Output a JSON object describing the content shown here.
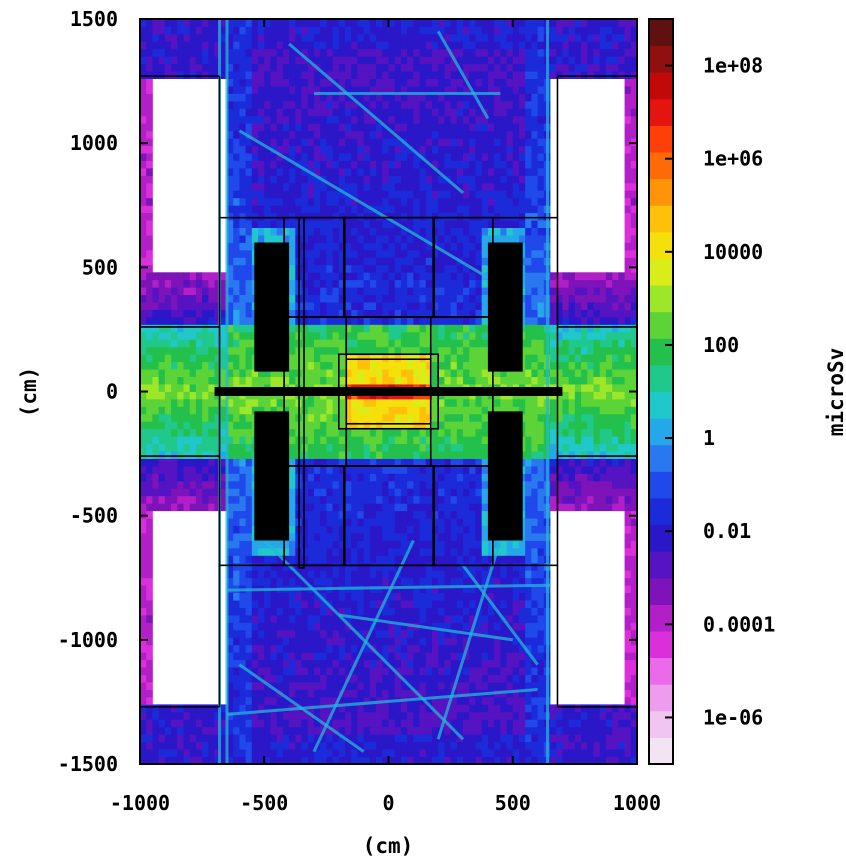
{
  "chart_data": {
    "type": "heatmap",
    "title": "",
    "xlabel": "(cm)",
    "ylabel": "(cm)",
    "xlim": [
      -1000,
      1000
    ],
    "ylim": [
      -1500,
      1500
    ],
    "x_ticks": [
      -1000,
      -500,
      0,
      500,
      1000
    ],
    "y_ticks": [
      1500,
      1000,
      500,
      0,
      -500,
      -1000,
      -1500
    ],
    "x_tick_labels": [
      "-1000",
      "-500",
      "0",
      "500",
      "1000"
    ],
    "y_tick_labels": [
      "1500",
      "1000",
      "500",
      "0",
      "-500",
      "-1000",
      "-1500"
    ],
    "log_scale_color": true,
    "colorbar": {
      "label": "microSv",
      "range": [
        1e-07,
        1000000000.0
      ],
      "tick_values": [
        100000000.0,
        1000000.0,
        10000,
        100,
        1,
        0.01,
        0.0001,
        1e-06
      ],
      "tick_labels": [
        "1e+08",
        "1e+06",
        "10000",
        "100",
        "1",
        "0.01",
        "0.0001",
        "1e-06"
      ]
    },
    "regions": [
      {
        "region": "beam line / central core (|x| < 150, |y| < 40)",
        "approx_dose_microSv": 10000000.0
      },
      {
        "region": "inner detector block (|x| < 180, |y| < 150)",
        "approx_dose_microSv": 10000.0
      },
      {
        "region": "corridor along beam axis (|y| < 260)",
        "approx_dose_microSv": 300
      },
      {
        "region": "outer detector volume",
        "approx_dose_microSv": 0.01
      },
      {
        "region": "corner areas (|x| > 650, |y| > 300)",
        "approx_dose_microSv": 1e-05
      }
    ],
    "grid": false
  }
}
